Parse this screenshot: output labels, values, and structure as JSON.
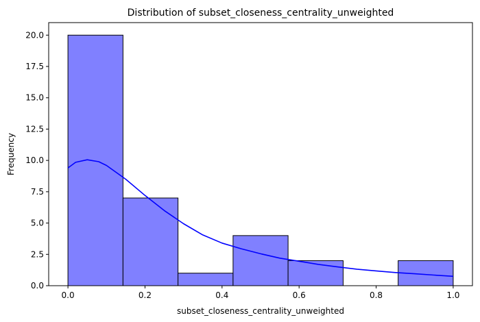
{
  "chart_data": {
    "type": "bar",
    "subtype": "histogram-with-kde",
    "title": "Distribution of subset_closeness_centrality_unweighted",
    "xlabel": "subset_closeness_centrality_unweighted",
    "ylabel": "Frequency",
    "xlim": [
      -0.05,
      1.05
    ],
    "ylim": [
      0,
      21
    ],
    "x_ticks": [
      "0.0",
      "0.2",
      "0.4",
      "0.6",
      "0.8",
      "1.0"
    ],
    "y_ticks": [
      "0.0",
      "2.5",
      "5.0",
      "7.5",
      "10.0",
      "12.5",
      "15.0",
      "17.5",
      "20.0"
    ],
    "bins": [
      {
        "start": 0.0,
        "end": 0.1429,
        "count": 20
      },
      {
        "start": 0.1429,
        "end": 0.2857,
        "count": 7
      },
      {
        "start": 0.2857,
        "end": 0.4286,
        "count": 1
      },
      {
        "start": 0.4286,
        "end": 0.5714,
        "count": 4
      },
      {
        "start": 0.5714,
        "end": 0.7143,
        "count": 2
      },
      {
        "start": 0.7143,
        "end": 0.8571,
        "count": 0
      },
      {
        "start": 0.8571,
        "end": 1.0,
        "count": 2
      }
    ],
    "kde": {
      "x": [
        0.0,
        0.02,
        0.05,
        0.08,
        0.1,
        0.15,
        0.2,
        0.25,
        0.3,
        0.35,
        0.4,
        0.45,
        0.5,
        0.55,
        0.6,
        0.65,
        0.7,
        0.75,
        0.8,
        0.85,
        0.9,
        0.95,
        1.0
      ],
      "y": [
        9.4,
        9.85,
        10.05,
        9.9,
        9.6,
        8.5,
        7.2,
        6.0,
        4.95,
        4.05,
        3.4,
        2.95,
        2.55,
        2.2,
        1.95,
        1.7,
        1.5,
        1.32,
        1.18,
        1.05,
        0.95,
        0.85,
        0.75
      ]
    },
    "grid": false,
    "colors": {
      "bar_fill": "#8080ff",
      "bar_edge": "#000000",
      "kde_line": "#0000ff"
    }
  }
}
